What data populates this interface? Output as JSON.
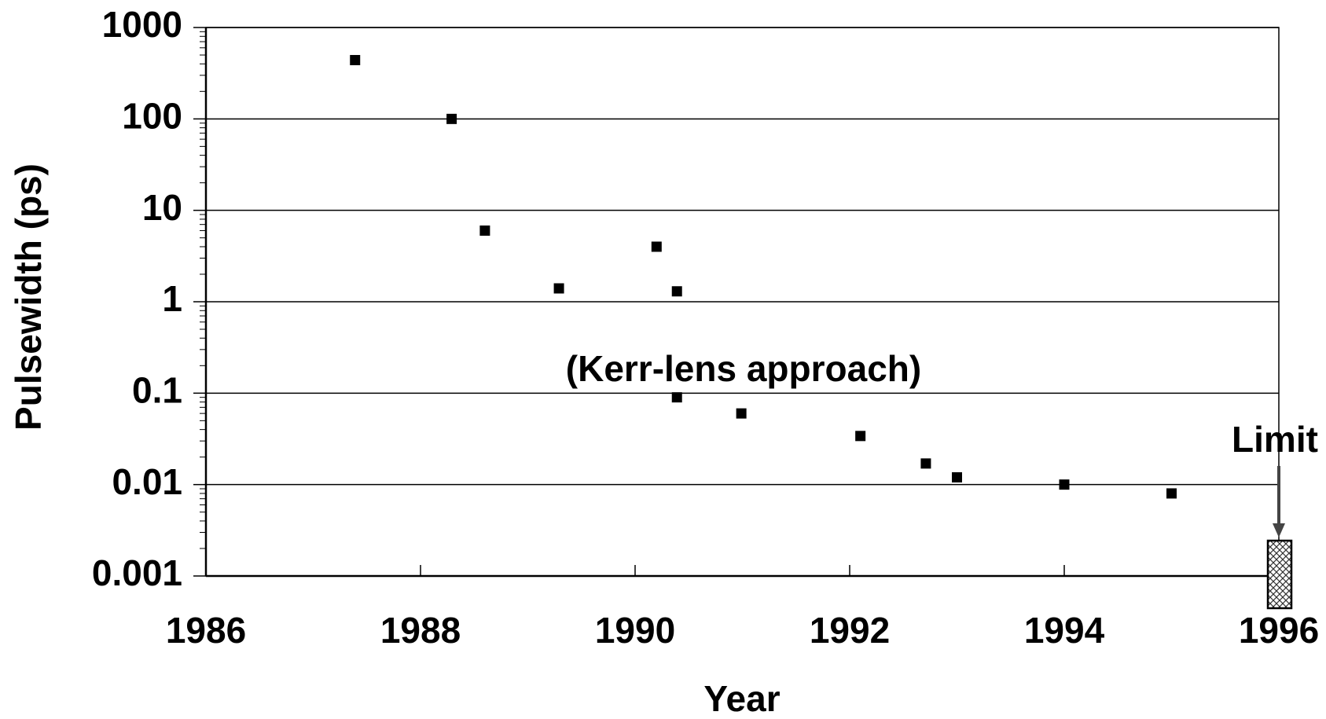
{
  "chart_data": {
    "type": "scatter",
    "x_label": "Year",
    "y_label": "Pulsewidth (ps)",
    "x": [
      1987.39,
      1988.29,
      1988.6,
      1989.29,
      1990.2,
      1990.39,
      1990.39,
      1990.99,
      1992.1,
      1992.71,
      1993.0,
      1994.0,
      1995.0
    ],
    "values": [
      440,
      100,
      6,
      1.4,
      4,
      1.3,
      0.09,
      0.06,
      0.034,
      0.017,
      0.012,
      0.01,
      0.008
    ],
    "color": "#000000",
    "xlim": [
      1986,
      1996
    ],
    "xticks": [
      1986,
      1988,
      1990,
      1992,
      1994,
      1996
    ],
    "ylim": [
      0.001,
      1000
    ],
    "yticks": [
      0.001,
      0.01,
      0.1,
      1,
      10,
      100,
      1000
    ],
    "y_log": true,
    "grid": true,
    "annotations": [
      "(Kerr-lens approach)",
      "Limit"
    ]
  }
}
